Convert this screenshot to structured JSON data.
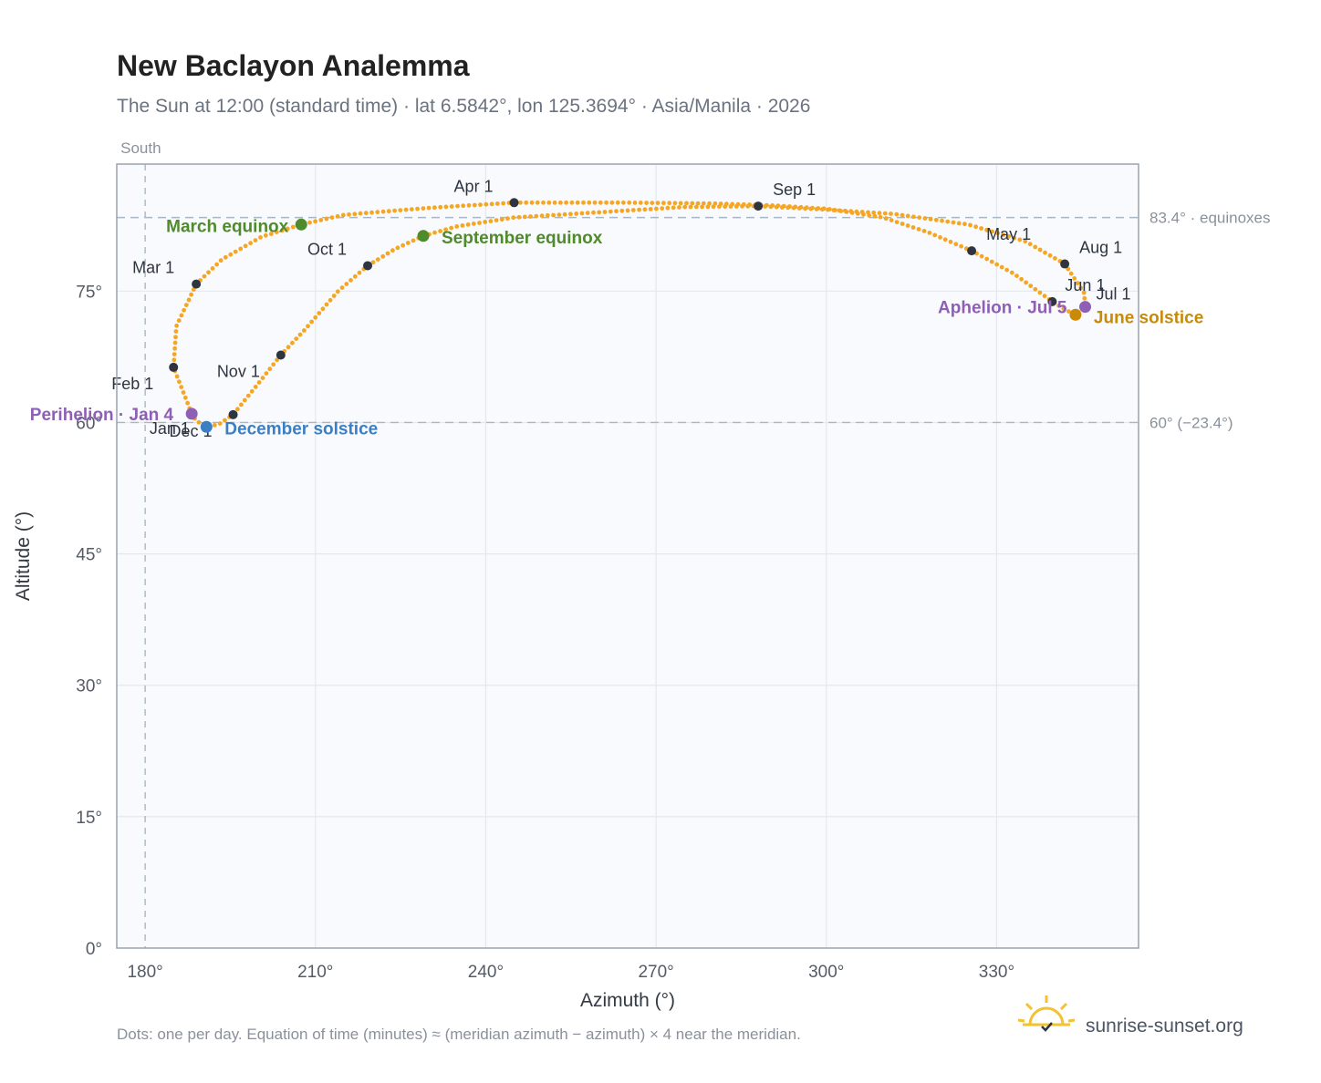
{
  "chart_data": {
    "type": "scatter",
    "title": "New Baclayon Analemma",
    "subtitle": "The Sun at 12:00 (standard time) · lat 6.5842°, lon 125.3694° · Asia/Manila · 2026",
    "xlabel": "Azimuth (°)",
    "ylabel": "Altitude (°)",
    "xlim": [
      175,
      355
    ],
    "ylim": [
      0,
      89.5
    ],
    "x_ticks": [
      {
        "v": 180,
        "label": "180°"
      },
      {
        "v": 210,
        "label": "210°"
      },
      {
        "v": 240,
        "label": "240°"
      },
      {
        "v": 270,
        "label": "270°"
      },
      {
        "v": 300,
        "label": "300°"
      },
      {
        "v": 330,
        "label": "330°"
      }
    ],
    "y_ticks": [
      {
        "v": 0,
        "label": "0°"
      },
      {
        "v": 15,
        "label": "15°"
      },
      {
        "v": 30,
        "label": "30°"
      },
      {
        "v": 45,
        "label": "45°"
      },
      {
        "v": 60,
        "label": "60°"
      },
      {
        "v": 75,
        "label": "75°"
      }
    ],
    "direction_label": {
      "x": 180,
      "label": "South"
    },
    "reference_lines": [
      {
        "y": 83.4,
        "label": "83.4° · equinoxes"
      },
      {
        "y": 60,
        "label": "60° (−23.4°)"
      }
    ],
    "daily_path": [
      {
        "x": 188.2,
        "y": 61.0
      },
      {
        "x": 185.0,
        "y": 66.3
      },
      {
        "x": 185.5,
        "y": 71.0
      },
      {
        "x": 189.0,
        "y": 75.8
      },
      {
        "x": 193.5,
        "y": 78.6
      },
      {
        "x": 200.5,
        "y": 81.2
      },
      {
        "x": 207.5,
        "y": 82.6
      },
      {
        "x": 215.0,
        "y": 83.7
      },
      {
        "x": 230.0,
        "y": 84.5
      },
      {
        "x": 245.0,
        "y": 85.1
      },
      {
        "x": 265.0,
        "y": 85.1
      },
      {
        "x": 280.0,
        "y": 85.0
      },
      {
        "x": 290.0,
        "y": 84.8
      },
      {
        "x": 300.0,
        "y": 84.4
      },
      {
        "x": 310.0,
        "y": 83.4
      },
      {
        "x": 318.0,
        "y": 81.7
      },
      {
        "x": 325.6,
        "y": 79.6
      },
      {
        "x": 333.0,
        "y": 77.0
      },
      {
        "x": 339.8,
        "y": 73.8
      },
      {
        "x": 342.0,
        "y": 72.9
      },
      {
        "x": 343.9,
        "y": 72.3
      },
      {
        "x": 345.6,
        "y": 73.2
      },
      {
        "x": 345.4,
        "y": 74.8
      },
      {
        "x": 342.0,
        "y": 78.1
      },
      {
        "x": 335.0,
        "y": 80.7
      },
      {
        "x": 325.0,
        "y": 82.6
      },
      {
        "x": 312.0,
        "y": 83.8
      },
      {
        "x": 300.0,
        "y": 84.3
      },
      {
        "x": 288.0,
        "y": 84.7
      },
      {
        "x": 275.0,
        "y": 84.6
      },
      {
        "x": 260.0,
        "y": 84.0
      },
      {
        "x": 245.0,
        "y": 83.4
      },
      {
        "x": 235.0,
        "y": 82.4
      },
      {
        "x": 229.0,
        "y": 81.3
      },
      {
        "x": 224.0,
        "y": 79.8
      },
      {
        "x": 219.2,
        "y": 77.9
      },
      {
        "x": 214.0,
        "y": 75.0
      },
      {
        "x": 208.0,
        "y": 70.5
      },
      {
        "x": 203.9,
        "y": 67.7
      },
      {
        "x": 200.0,
        "y": 64.5
      },
      {
        "x": 195.5,
        "y": 60.9
      },
      {
        "x": 193.0,
        "y": 59.8
      },
      {
        "x": 190.8,
        "y": 59.5
      },
      {
        "x": 189.0,
        "y": 60.2
      },
      {
        "x": 188.2,
        "y": 61.0
      }
    ],
    "month_markers": [
      {
        "label": "Jan 1",
        "x": 188.0,
        "y": 61.0
      },
      {
        "label": "Feb 1",
        "x": 185.0,
        "y": 66.3
      },
      {
        "label": "Mar 1",
        "x": 189.0,
        "y": 75.8
      },
      {
        "label": "Apr 1",
        "x": 245.0,
        "y": 85.1
      },
      {
        "label": "May 1",
        "x": 325.6,
        "y": 79.6
      },
      {
        "label": "Jun 1",
        "x": 339.8,
        "y": 73.8
      },
      {
        "label": "Jul 1",
        "x": 345.6,
        "y": 73.2
      },
      {
        "label": "Aug 1",
        "x": 342.0,
        "y": 78.1
      },
      {
        "label": "Sep 1",
        "x": 288.0,
        "y": 84.7
      },
      {
        "label": "Oct 1",
        "x": 219.2,
        "y": 77.9
      },
      {
        "label": "Nov 1",
        "x": 203.9,
        "y": 67.7
      },
      {
        "label": "Dec 1",
        "x": 195.5,
        "y": 60.9
      }
    ],
    "events": [
      {
        "label": "March equinox",
        "x": 207.5,
        "y": 82.6,
        "color": "#4f8a2b"
      },
      {
        "label": "September equinox",
        "x": 229.0,
        "y": 81.3,
        "color": "#4f8a2b"
      },
      {
        "label": "June solstice",
        "x": 343.9,
        "y": 72.3,
        "color": "#c98a06"
      },
      {
        "label": "December solstice",
        "x": 190.8,
        "y": 59.5,
        "color": "#3a7fc4"
      },
      {
        "label": "Aphelion · Jul 5",
        "x": 345.6,
        "y": 73.2,
        "color": "#8e5fb5"
      },
      {
        "label": "Perihelion · Jan 4",
        "x": 188.2,
        "y": 61.0,
        "color": "#8e5fb5"
      }
    ],
    "grid": true,
    "colors": {
      "path": "#f5a623",
      "marker": "#2f3540",
      "plot_bg": "#f8fafd",
      "frame": "#9aa3af"
    }
  },
  "footer": {
    "note": "Dots: one per day. Equation of time (minutes) ≈ (meridian azimuth − azimuth) × 4 near the meridian.",
    "brand": "sunrise-sunset.org",
    "brand_icon": "sun-icon"
  }
}
